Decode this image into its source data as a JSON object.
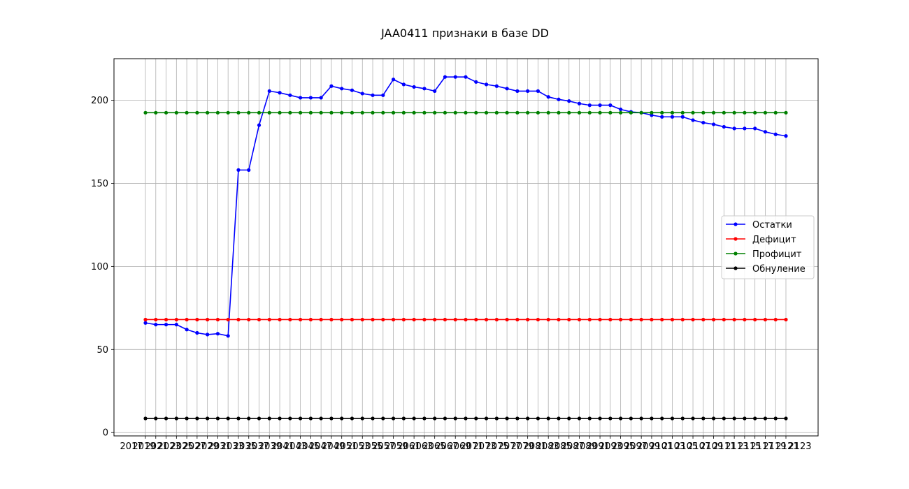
{
  "chart_data": {
    "type": "line",
    "title": "JAA0411 признаки в базе DD",
    "xlabel": "",
    "ylabel": "",
    "ylim": [
      -2,
      225
    ],
    "yticks": [
      0,
      50,
      100,
      150,
      200
    ],
    "grid": true,
    "legend_position": "center-right",
    "x_tick_labels": [
      "2017",
      "2019",
      "2021",
      "2023",
      "2025",
      "2027",
      "2029",
      "2031",
      "2033",
      "2035",
      "2037",
      "2039",
      "2041",
      "2043",
      "2045",
      "2047",
      "2049",
      "2051",
      "2053",
      "2055",
      "2057",
      "2059",
      "2061",
      "2063",
      "2065",
      "2067",
      "2069",
      "2071",
      "2073",
      "2075",
      "2077",
      "2079",
      "2081",
      "2083",
      "2085",
      "2087",
      "2089",
      "2091",
      "2093",
      "2095",
      "2097",
      "2099",
      "2101",
      "2103",
      "2105",
      "2107",
      "2109",
      "2111",
      "2113",
      "2115",
      "2117",
      "2119",
      "2121",
      "2123"
    ],
    "series": [
      {
        "name": "Остатки",
        "color": "#0000ff",
        "values": [
          66,
          65,
          65,
          65,
          62,
          60,
          59,
          59.5,
          58.2,
          158,
          158,
          185,
          205.5,
          204.5,
          203,
          201.5,
          201.5,
          201.5,
          208.5,
          207,
          206,
          204,
          203,
          203,
          212.5,
          209.5,
          208,
          207,
          205.5,
          214,
          214,
          214,
          211,
          209.5,
          208.5,
          207,
          205.5,
          205.5,
          205.5,
          202,
          200.5,
          199.5,
          198,
          197,
          197,
          197,
          194.5,
          193,
          192.5,
          191,
          190,
          190,
          190,
          188,
          186.5,
          185.5,
          184,
          183,
          183,
          183,
          181,
          179.5,
          178.5
        ]
      },
      {
        "name": "Дефицит",
        "color": "#ff0000",
        "values": [
          68,
          68,
          68,
          68,
          68,
          68,
          68,
          68,
          68,
          68,
          68,
          68,
          68,
          68,
          68,
          68,
          68,
          68,
          68,
          68,
          68,
          68,
          68,
          68,
          68,
          68,
          68,
          68,
          68,
          68,
          68,
          68,
          68,
          68,
          68,
          68,
          68,
          68,
          68,
          68,
          68,
          68,
          68,
          68,
          68,
          68,
          68,
          68,
          68,
          68,
          68,
          68,
          68,
          68,
          68,
          68,
          68,
          68,
          68,
          68,
          68,
          68,
          68
        ]
      },
      {
        "name": "Профицит",
        "color": "#008000",
        "values": [
          192.5,
          192.5,
          192.5,
          192.5,
          192.5,
          192.5,
          192.5,
          192.5,
          192.5,
          192.5,
          192.5,
          192.5,
          192.5,
          192.5,
          192.5,
          192.5,
          192.5,
          192.5,
          192.5,
          192.5,
          192.5,
          192.5,
          192.5,
          192.5,
          192.5,
          192.5,
          192.5,
          192.5,
          192.5,
          192.5,
          192.5,
          192.5,
          192.5,
          192.5,
          192.5,
          192.5,
          192.5,
          192.5,
          192.5,
          192.5,
          192.5,
          192.5,
          192.5,
          192.5,
          192.5,
          192.5,
          192.5,
          192.5,
          192.5,
          192.5,
          192.5,
          192.5,
          192.5,
          192.5,
          192.5,
          192.5,
          192.5,
          192.5,
          192.5,
          192.5,
          192.5,
          192.5,
          192.5
        ]
      },
      {
        "name": "Обнуление",
        "color": "#000000",
        "values": [
          8.5,
          8.5,
          8.5,
          8.5,
          8.5,
          8.5,
          8.5,
          8.5,
          8.5,
          8.5,
          8.5,
          8.5,
          8.5,
          8.5,
          8.5,
          8.5,
          8.5,
          8.5,
          8.5,
          8.5,
          8.5,
          8.5,
          8.5,
          8.5,
          8.5,
          8.5,
          8.5,
          8.5,
          8.5,
          8.5,
          8.5,
          8.5,
          8.5,
          8.5,
          8.5,
          8.5,
          8.5,
          8.5,
          8.5,
          8.5,
          8.5,
          8.5,
          8.5,
          8.5,
          8.5,
          8.5,
          8.5,
          8.5,
          8.5,
          8.5,
          8.5,
          8.5,
          8.5,
          8.5,
          8.5,
          8.5,
          8.5,
          8.5,
          8.5,
          8.5,
          8.5,
          8.5,
          8.5
        ]
      }
    ]
  }
}
